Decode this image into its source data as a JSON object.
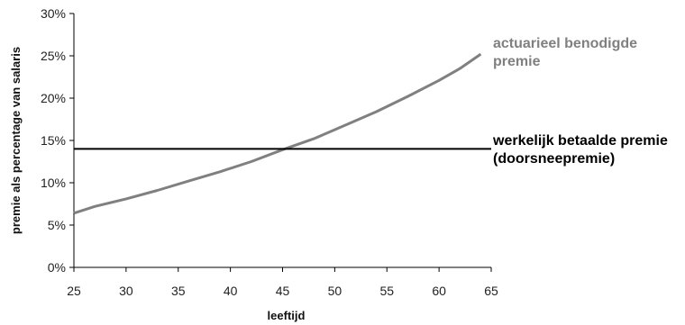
{
  "chart_data": {
    "type": "line",
    "title": "",
    "xlabel": "leeftijd",
    "ylabel": "premie als percentage van salaris",
    "xlim": [
      25,
      65
    ],
    "ylim": [
      0,
      30
    ],
    "x_ticks": [
      "25",
      "30",
      "35",
      "40",
      "45",
      "50",
      "55",
      "60",
      "65"
    ],
    "y_ticks": [
      "0%",
      "5%",
      "10%",
      "15%",
      "20%",
      "25%",
      "30%"
    ],
    "grid": false,
    "legend_position": "right",
    "series": [
      {
        "name": "actuarieel benodigde premie",
        "label_lines": [
          "actuarieel benodigde",
          "premie"
        ],
        "color": "#808080",
        "x": [
          25,
          27,
          30,
          33,
          36,
          39,
          42,
          45,
          48,
          51,
          54,
          57,
          60,
          62,
          64
        ],
        "y": [
          6.4,
          7.2,
          8.1,
          9.1,
          10.2,
          11.3,
          12.5,
          13.9,
          15.2,
          16.8,
          18.4,
          20.2,
          22.1,
          23.5,
          25.2
        ]
      },
      {
        "name": "werkelijk betaalde premie (doorsneepremie)",
        "label_lines": [
          "werkelijk betaalde premie",
          "(doorsneepremie)"
        ],
        "color": "#000000",
        "x": [
          25,
          65
        ],
        "y": [
          14,
          14
        ]
      }
    ]
  }
}
